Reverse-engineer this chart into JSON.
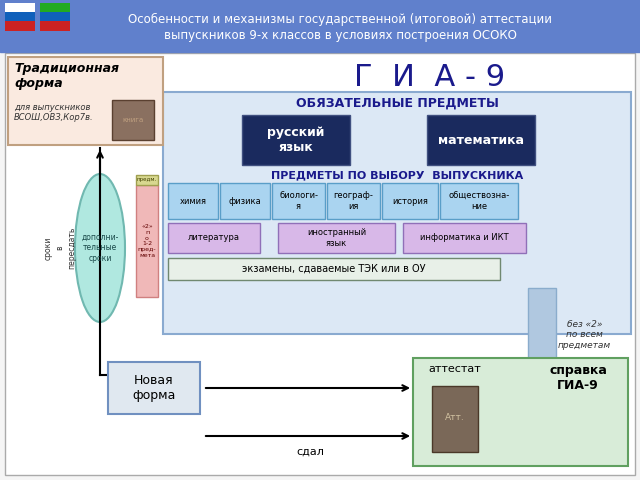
{
  "header_bg": "#6080cc",
  "header_text_line1": "Особенности и механизмы государственной (итоговой) аттестации",
  "header_text_line2": "выпускников 9-х классов в условиях построения ОСОКО",
  "header_text_color": "#ffffff",
  "body_bg": "#f5f5f5",
  "title_gia": "Г  И  А - 9",
  "title_gia_color": "#1a1a8c",
  "oblig_label": "ОБЯЗАТЕЛЬНЫЕ ПРЕДМЕТЫ",
  "oblig_label_color": "#1a1a8c",
  "subject1": "русский\nязык",
  "subject2": "математика",
  "subject_bg": "#1a2a5e",
  "subject_text_color": "#ffffff",
  "choice_label": "ПРЕДМЕТЫ ПО ВЫБОРУ  ВЫПУСКНИКА",
  "choice_label_color": "#1a1a8c",
  "choice_subjects_row1": [
    "химия",
    "физика",
    "биологи-\nя",
    "географ-\nия",
    "история",
    "обществозна-\nние"
  ],
  "choice_subjects_row2": [
    "литература",
    "иностранный\nязык",
    "информатика и ИКТ"
  ],
  "choice_bg": "#aad4f0",
  "choice_border": "#5a9ec8",
  "choice_purple_bg": "#d8b8e8",
  "choice_purple_border": "#9070b8",
  "exam_label": "экзамены, сдаваемые ТЭК или в ОУ",
  "exam_bg": "#e8f0e8",
  "exam_border": "#708870",
  "trad_box_bg": "#faeae0",
  "trad_box_border": "#c0a080",
  "trad_text_bold": "Традиционная\nформа",
  "trad_text_small": "для выпускников\nВСОШ,ОВЗ,Кор7в.",
  "oval_bg": "#b0e8e0",
  "oval_border": "#70b8b0",
  "pink_col_bg": "#f0b8b8",
  "new_form_bg": "#e0e8f0",
  "new_form_border": "#7090c0",
  "new_form_text": "Новая\nформа",
  "attest_bg": "#d8ecd8",
  "attest_border": "#60a060",
  "attest_text": "аттестат",
  "spravka_text": "справка\nГИА-9",
  "arrow_color": "#000000",
  "sdal_text": "сдал",
  "bez_text": "без «2»\nпо всем\nпредметам",
  "light_blue_col_bg": "#b0c8e0",
  "main_box_bg": "#dce8f5",
  "main_box_border": "#8aaad0"
}
